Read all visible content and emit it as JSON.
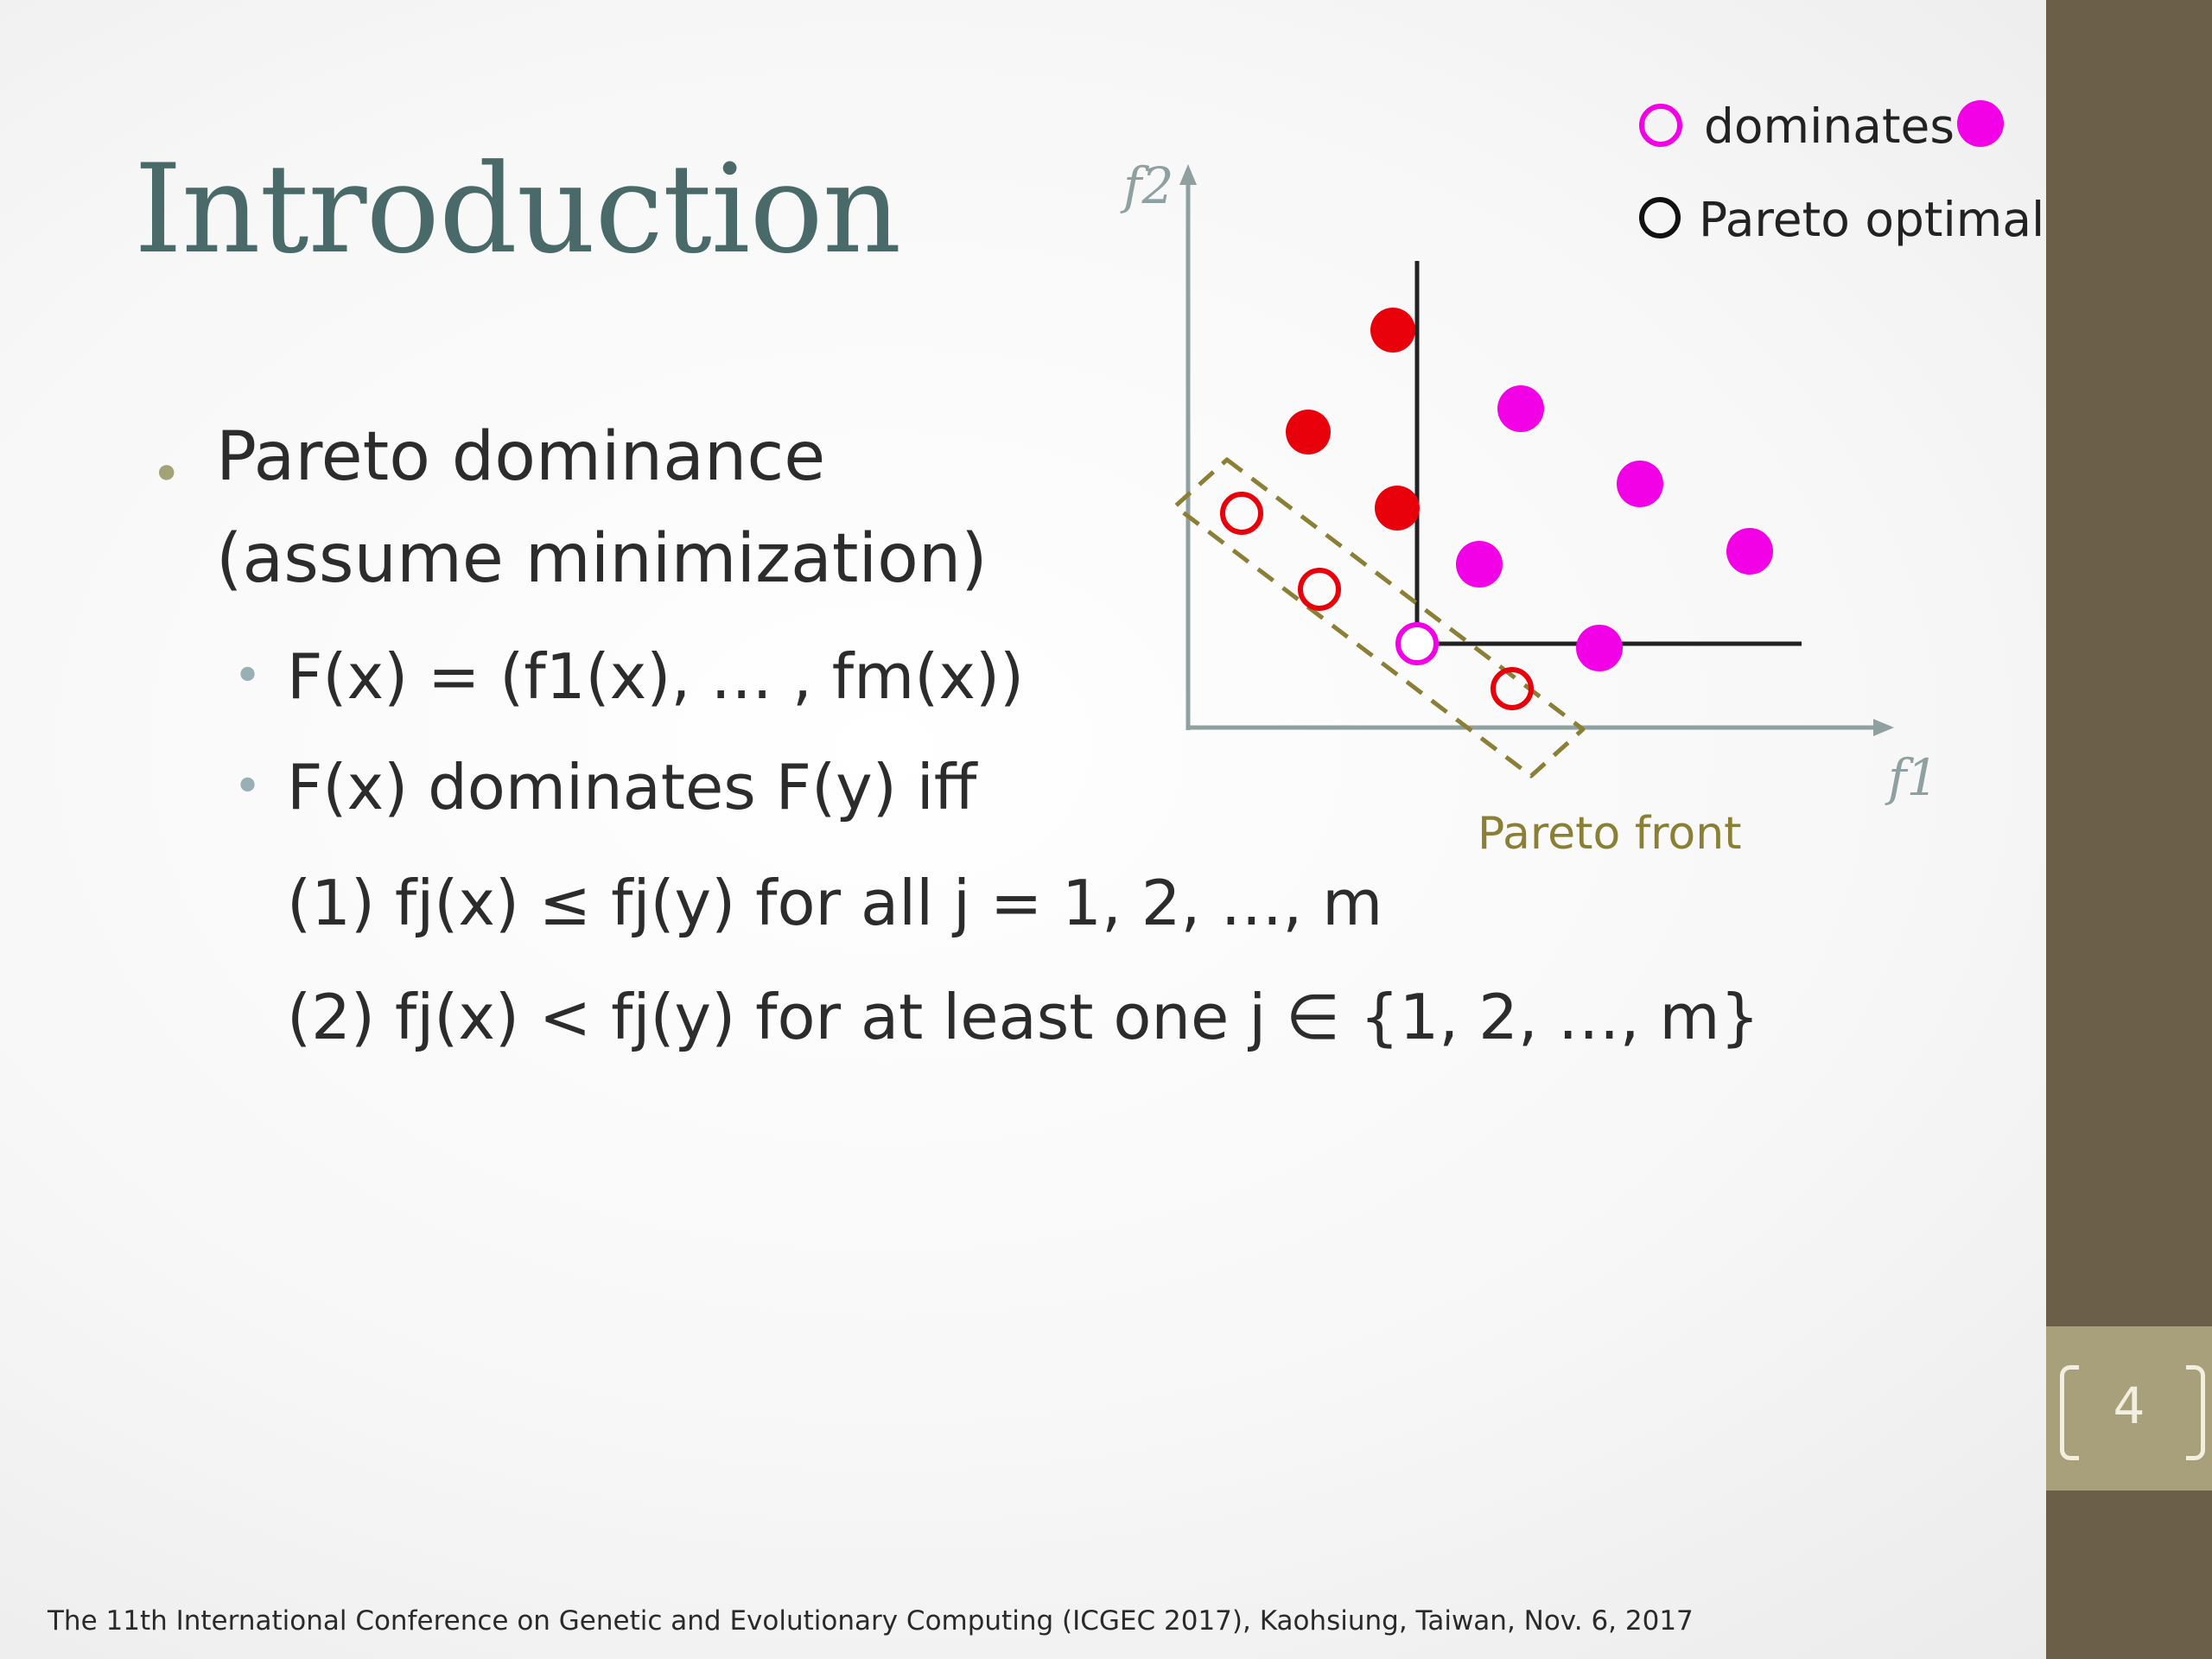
{
  "slide": {
    "title": "Introduction",
    "page_number": "4",
    "footer": "The 11th International Conference on Genetic and Evolutionary Computing (ICGEC 2017), Kaohsiung, Taiwan, Nov. 6, 2017"
  },
  "bullets": {
    "main_line1": "Pareto dominance",
    "main_line2": "(assume minimization)",
    "sub1": "F(x) = (f1(x), … , fm(x))",
    "sub2": "F(x) dominates F(y) iff",
    "cond1": "(1) fj(x) ≤ fj(y) for all j = 1, 2, …, m",
    "cond2": "(2) fj(x) < fj(y) for at least one j ∈ {1, 2, …, m}"
  },
  "diagram": {
    "axis_x_label": "f1",
    "axis_y_label": "f2",
    "legend_dominates": "dominates",
    "legend_pareto": "Pareto optimal",
    "front_label": "Pareto front",
    "colors": {
      "red": "#e8000b",
      "magenta": "#f200e6",
      "axis": "#8fa0a0",
      "front": "#8a7f35"
    }
  }
}
